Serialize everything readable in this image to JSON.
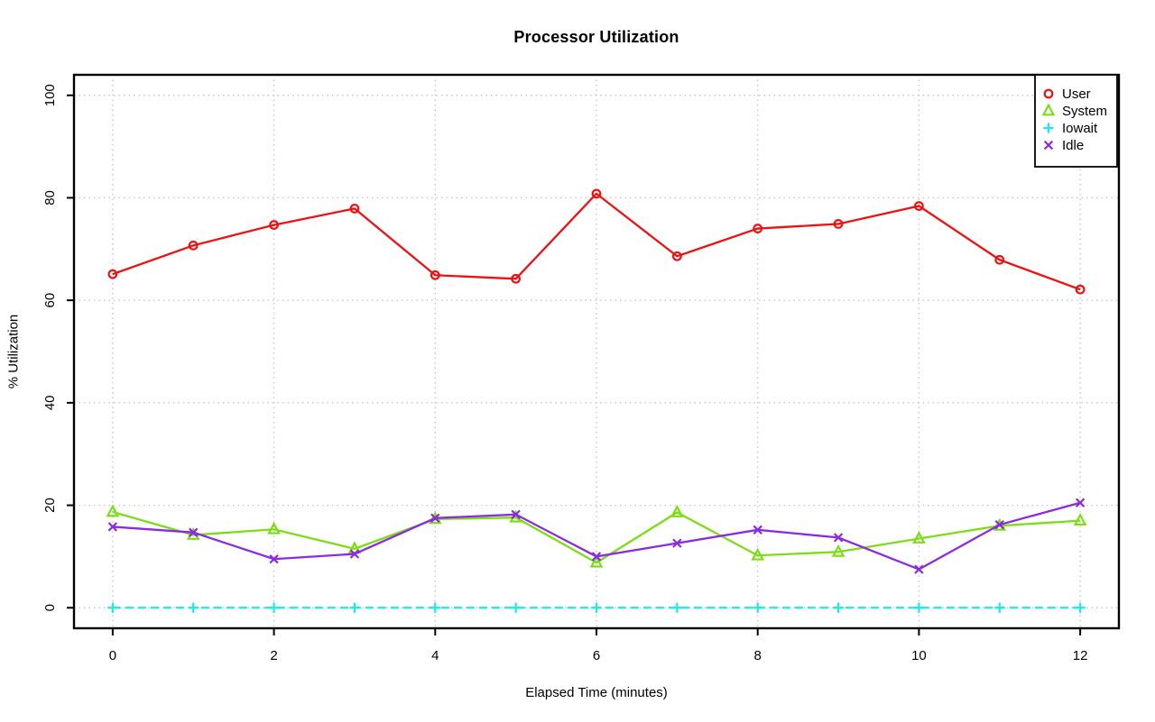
{
  "chart_data": {
    "type": "line",
    "title": "Processor Utilization",
    "xlabel": "Elapsed Time (minutes)",
    "ylabel": "% Utilization",
    "x": [
      0,
      1,
      2,
      3,
      4,
      5,
      6,
      7,
      8,
      9,
      10,
      11,
      12
    ],
    "x_ticks": [
      0,
      2,
      4,
      6,
      8,
      10,
      12
    ],
    "y_ticks": [
      0,
      20,
      40,
      60,
      80,
      100
    ],
    "xlim": [
      0,
      12
    ],
    "ylim": [
      0,
      100
    ],
    "grid": "dotted",
    "grid_color": "#c8c8c8",
    "background": "#ffffff",
    "legend_position": "top-right",
    "series": [
      {
        "name": "User",
        "marker": "circle",
        "linestyle": "solid",
        "color": "#ee1111",
        "values": [
          65.1,
          70.7,
          74.7,
          77.9,
          64.9,
          64.2,
          80.8,
          68.6,
          74.0,
          74.9,
          78.4,
          67.9,
          62.1
        ]
      },
      {
        "name": "System",
        "marker": "triangle",
        "linestyle": "solid",
        "color": "#7cdd17",
        "values": [
          18.7,
          14.2,
          15.3,
          11.5,
          17.3,
          17.6,
          8.8,
          18.6,
          10.2,
          10.9,
          13.5,
          16.0,
          17.0
        ]
      },
      {
        "name": "Iowait",
        "marker": "plus",
        "linestyle": "dashed",
        "color": "#21e8e8",
        "values": [
          0,
          0,
          0,
          0,
          0,
          0,
          0,
          0,
          0,
          0,
          0,
          0,
          0
        ]
      },
      {
        "name": "Idle",
        "marker": "x",
        "linestyle": "solid",
        "color": "#8a2be2",
        "values": [
          15.8,
          14.7,
          9.5,
          10.5,
          17.5,
          18.2,
          10.0,
          12.6,
          15.2,
          13.7,
          7.5,
          16.2,
          20.5
        ]
      }
    ]
  }
}
